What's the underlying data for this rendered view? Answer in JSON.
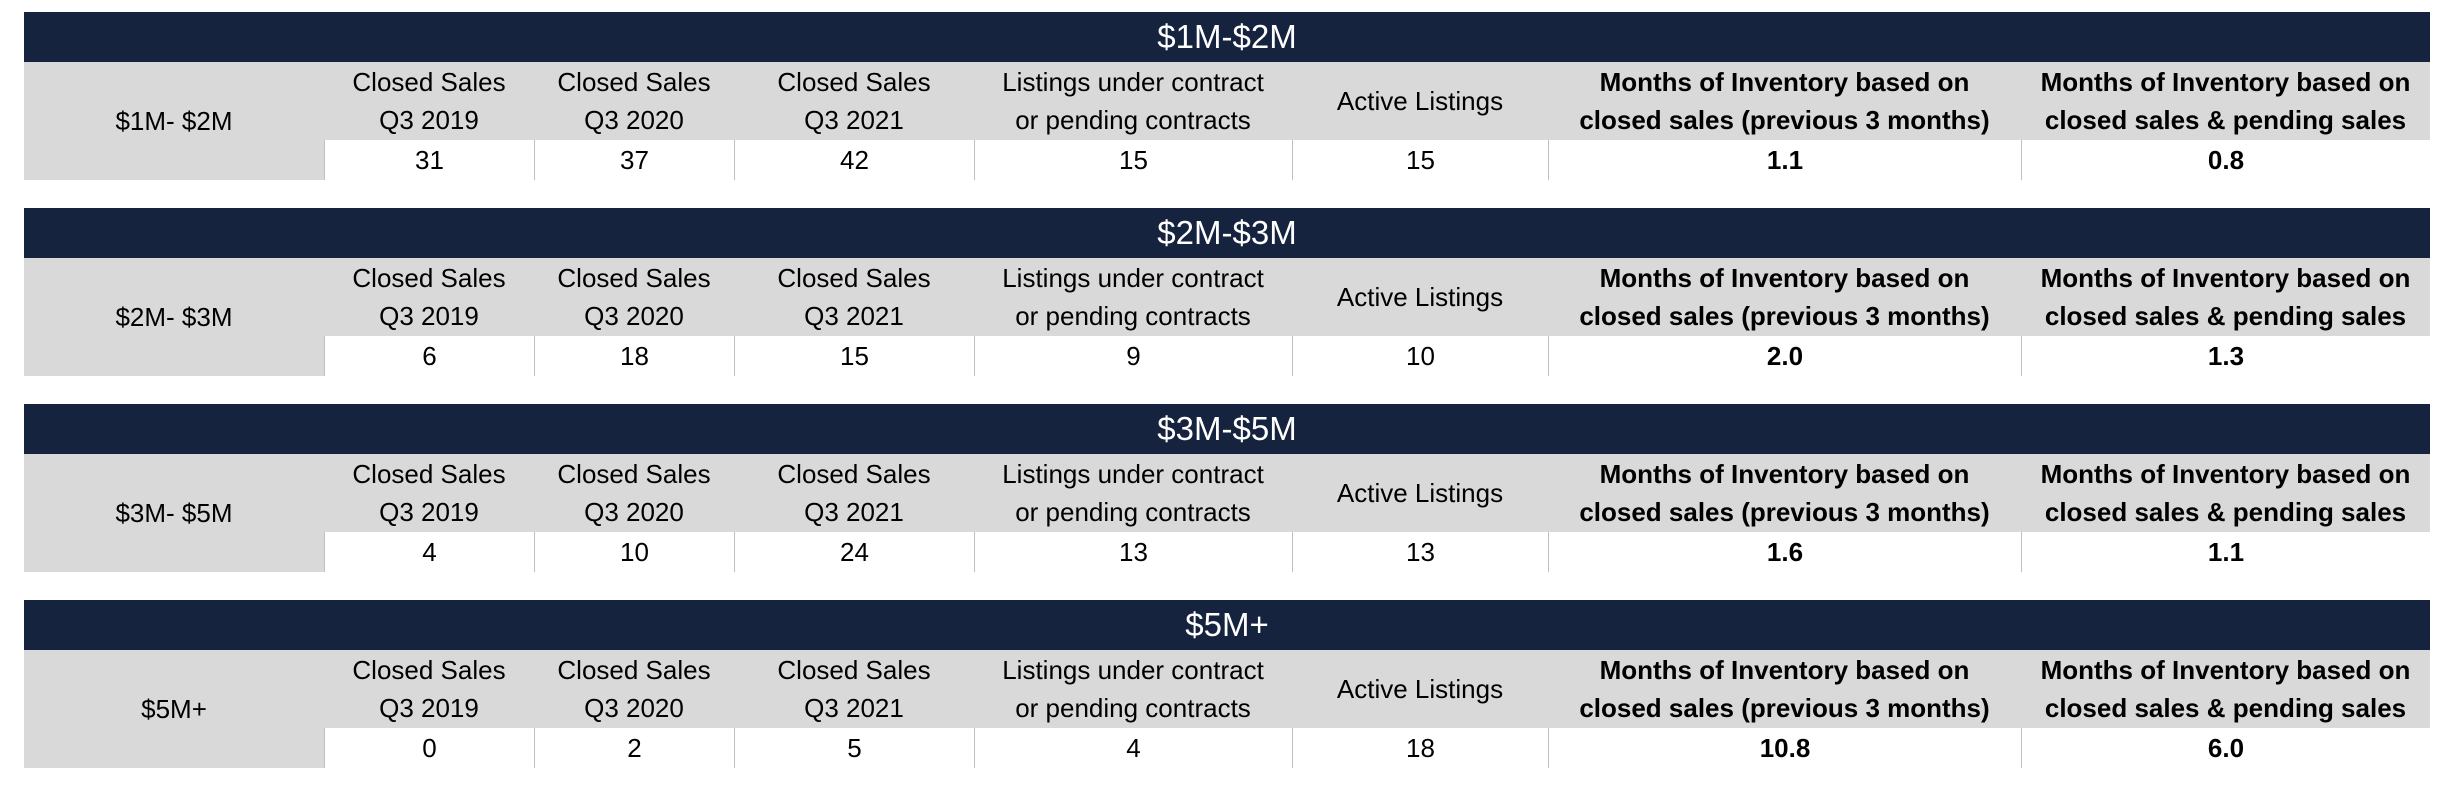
{
  "chart_data": {
    "type": "table",
    "columns": [
      "Closed Sales\nQ3 2019",
      "Closed Sales\nQ3 2020",
      "Closed Sales\nQ3 2021",
      "Listings under contract\nor pending contracts",
      "Active Listings",
      "Months of Inventory based on\nclosed sales (previous 3 months)",
      "Months of Inventory based on\nclosed sales & pending sales"
    ],
    "tables": [
      {
        "title": "$1M-$2M",
        "row_label": "$1M- $2M",
        "values": [
          "31",
          "37",
          "42",
          "15",
          "15",
          "1.1",
          "0.8"
        ]
      },
      {
        "title": "$2M-$3M",
        "row_label": "$2M- $3M",
        "values": [
          "6",
          "18",
          "15",
          "9",
          "10",
          "2.0",
          "1.3"
        ]
      },
      {
        "title": "$3M-$5M",
        "row_label": "$3M- $5M",
        "values": [
          "4",
          "10",
          "24",
          "13",
          "13",
          "1.6",
          "1.1"
        ]
      },
      {
        "title": "$5M+",
        "row_label": "$5M+",
        "values": [
          "0",
          "2",
          "5",
          "4",
          "18",
          "10.8",
          "6.0"
        ]
      }
    ]
  },
  "colors": {
    "title_bar": "#15233f",
    "header_bg": "#d9d9d9",
    "value_bg": "#ffffff",
    "title_text": "#ffffff"
  }
}
